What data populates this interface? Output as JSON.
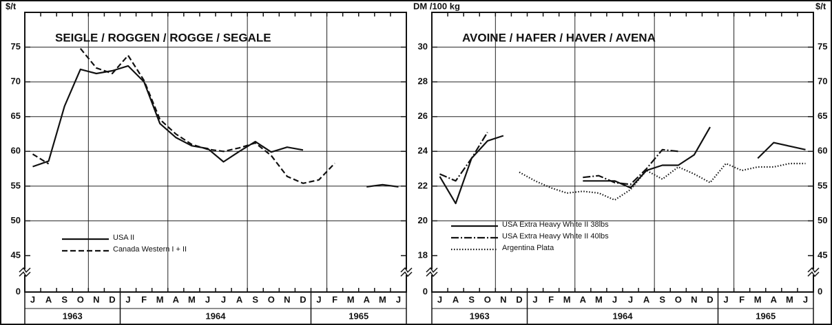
{
  "chart_data": [
    {
      "type": "line",
      "title": "SEIGLE / ROGGEN / ROGGE / SEGALE",
      "y_unit": "$/t",
      "categories": [
        "J",
        "A",
        "S",
        "O",
        "N",
        "D",
        "J",
        "F",
        "M",
        "A",
        "M",
        "J",
        "J",
        "A",
        "S",
        "O",
        "N",
        "D",
        "J",
        "F",
        "M",
        "A",
        "M",
        "J"
      ],
      "years": [
        "1963",
        "1964",
        "1965"
      ],
      "ylim": [
        0,
        80
      ],
      "yticks": [
        0,
        45,
        50,
        55,
        60,
        65,
        70,
        75
      ],
      "axis_break": true,
      "grid": true,
      "legend": "lower left",
      "series": [
        {
          "name": "USA II",
          "color": "#111111",
          "dash": "solid",
          "values": [
            57.8,
            58.6,
            66.5,
            71.8,
            71.2,
            71.6,
            72.3,
            70,
            64,
            62,
            60.8,
            60.4,
            58.5,
            60,
            61.4,
            59.9,
            60.6,
            60.2,
            null,
            null,
            null,
            54.9,
            55.2,
            54.9
          ]
        },
        {
          "name": "Canada Western I + II",
          "color": "#111111",
          "dash": "dashed",
          "values": [
            59.6,
            58.2,
            null,
            74.8,
            72,
            71.2,
            73.8,
            70.2,
            64.6,
            62.5,
            61,
            60.3,
            60,
            60.5,
            61.2,
            59.4,
            56.4,
            55.4,
            55.9,
            58.3,
            null,
            null,
            null,
            null
          ]
        }
      ]
    },
    {
      "type": "line",
      "title": "AVOINE / HAFER / HAVER / AVENA",
      "y_unit": "DM /100 kg",
      "y2_unit": "$/t",
      "categories": [
        "J",
        "A",
        "S",
        "O",
        "N",
        "D",
        "J",
        "F",
        "M",
        "A",
        "M",
        "J",
        "J",
        "A",
        "S",
        "O",
        "N",
        "D",
        "J",
        "F",
        "M",
        "A",
        "M",
        "J"
      ],
      "years": [
        "1963",
        "1964",
        "1965"
      ],
      "ylim": [
        0,
        32
      ],
      "yticks": [
        0,
        18,
        20,
        22,
        24,
        26,
        28,
        30
      ],
      "y2lim": [
        0,
        80
      ],
      "y2ticks": [
        0,
        45,
        50,
        55,
        60,
        65,
        70,
        75
      ],
      "axis_break": true,
      "grid": true,
      "legend": "lower left",
      "series": [
        {
          "name": "USA Extra Heavy White II 38lbs",
          "color": "#111111",
          "dash": "solid",
          "values": [
            22.55,
            21.0,
            23.6,
            24.6,
            24.9,
            null,
            null,
            null,
            null,
            22.3,
            22.3,
            22.3,
            21.9,
            22.9,
            23.2,
            23.2,
            23.8,
            25.4,
            null,
            null,
            23.6,
            24.5,
            24.3,
            24.1
          ]
        },
        {
          "name": "USA Extra Heavy White II 40lbs",
          "color": "#111111",
          "dash": "dashdot",
          "values": [
            22.7,
            22.3,
            23.6,
            25.1,
            null,
            null,
            null,
            null,
            null,
            22.5,
            22.6,
            22.2,
            22.1,
            23.0,
            24.1,
            24.0,
            null,
            null,
            null,
            null,
            null,
            null,
            null,
            null
          ]
        },
        {
          "name": "Argentina Plata",
          "color": "#111111",
          "dash": "dotted",
          "values": [
            null,
            null,
            null,
            null,
            null,
            22.8,
            22.3,
            21.9,
            21.6,
            21.7,
            21.6,
            21.2,
            21.8,
            22.9,
            22.4,
            23.1,
            22.7,
            22.2,
            23.3,
            22.9,
            23.1,
            23.1,
            23.3,
            23.3
          ]
        }
      ]
    }
  ]
}
